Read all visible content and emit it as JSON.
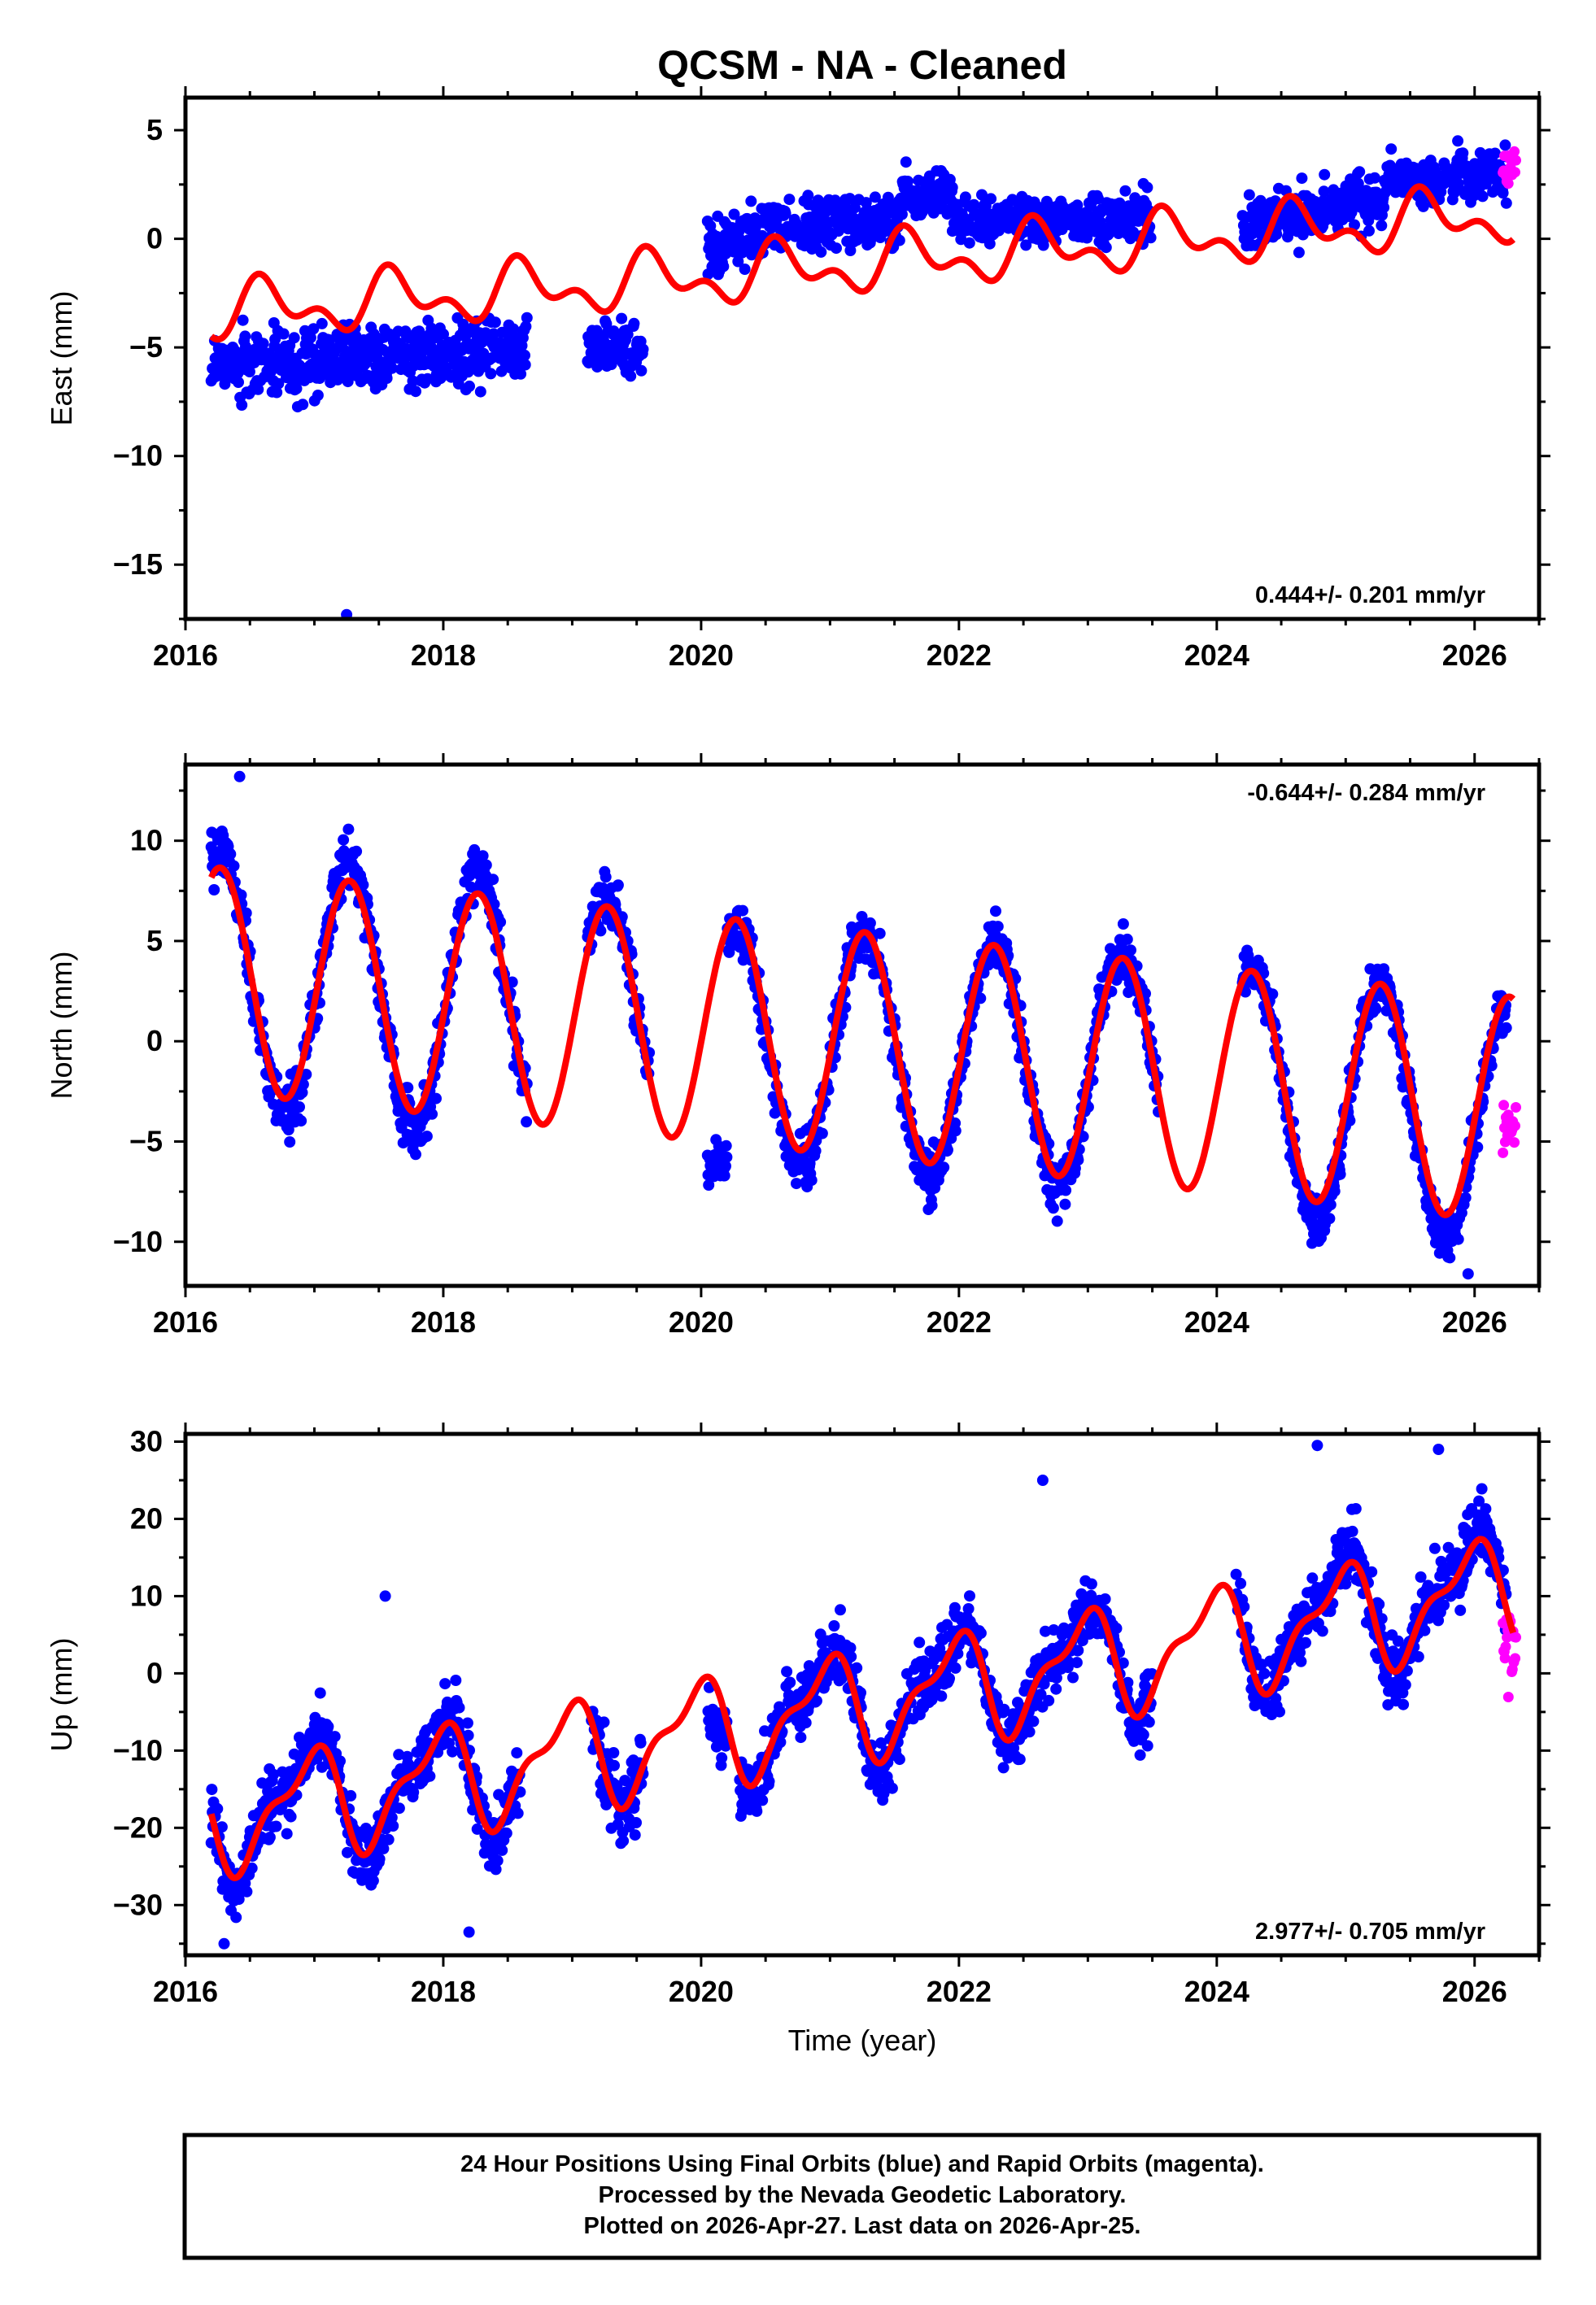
{
  "title": "QCSM  - NA - Cleaned",
  "colors": {
    "final_orbits": "#0000ff",
    "rapid_orbits": "#ff00ff",
    "model_fit": "#ff0000",
    "frame": "#000000"
  },
  "chart_data": [
    {
      "type": "scatter",
      "name": "east",
      "ylabel": "East (mm)",
      "xlabel": "",
      "xlim": [
        2016.0,
        2026.5
      ],
      "ylim": [
        -17.5,
        6.5
      ],
      "xticks": [
        2016,
        2018,
        2020,
        2022,
        2024,
        2026
      ],
      "yticks": [
        -15,
        -10,
        -5,
        0,
        5
      ],
      "xtick_labels": [
        "2016",
        "2018",
        "2020",
        "2022",
        "2024",
        "2026"
      ],
      "ytick_labels": [
        "−15",
        "−10",
        "−5",
        "0",
        "5"
      ],
      "rate_label": "0.444+/- 0.201 mm/yr",
      "rate_position": "bottom-right",
      "gaps": [
        [
          2018.65,
          2019.12
        ],
        [
          2019.55,
          2020.05
        ],
        [
          2023.5,
          2024.2
        ]
      ],
      "model": {
        "start": 2016.2,
        "end": 2026.3,
        "offset": -3.4,
        "linear": [
          [
            2016.2,
            0.0
          ],
          [
            2020.2,
            1.7
          ],
          [
            2022.0,
            2.6
          ],
          [
            2026.3,
            4.5
          ]
        ],
        "annual_amp": 1.0,
        "annual_phase": 0.62,
        "semiannual_amp": 0.7,
        "semiannual_phase": 0.05
      },
      "segments": [
        {
          "start": 2016.2,
          "end": 2018.65,
          "center_start": -5.9,
          "center_end": -5.0,
          "spread": 1.3
        },
        {
          "start": 2019.12,
          "end": 2019.55,
          "center_start": -5.0,
          "center_end": -5.0,
          "spread": 1.0
        },
        {
          "start": 2020.05,
          "end": 2020.4,
          "center_start": -0.5,
          "center_end": 0.0,
          "spread": 1.2
        },
        {
          "start": 2020.4,
          "end": 2021.55,
          "center_start": 0.3,
          "center_end": 0.8,
          "spread": 1.1
        },
        {
          "start": 2021.55,
          "end": 2021.95,
          "center_start": 2.1,
          "center_end": 2.0,
          "spread": 1.0
        },
        {
          "start": 2021.95,
          "end": 2023.5,
          "center_start": 0.8,
          "center_end": 1.0,
          "spread": 1.0
        },
        {
          "start": 2024.2,
          "end": 2025.3,
          "center_start": 0.6,
          "center_end": 1.8,
          "spread": 1.1
        },
        {
          "start": 2025.3,
          "end": 2026.25,
          "center_start": 2.6,
          "center_end": 3.0,
          "spread": 1.0
        }
      ],
      "outliers": [
        {
          "x": 2017.25,
          "y": -17.3
        }
      ],
      "rapid": {
        "start": 2026.22,
        "end": 2026.32,
        "center": 3.2,
        "spread": 0.9,
        "count": 18
      }
    },
    {
      "type": "scatter",
      "name": "north",
      "ylabel": "North (mm)",
      "xlabel": "",
      "xlim": [
        2016.0,
        2026.5
      ],
      "ylim": [
        -12.2,
        13.8
      ],
      "xticks": [
        2016,
        2018,
        2020,
        2022,
        2024,
        2026
      ],
      "yticks": [
        -10,
        -5,
        0,
        5,
        10
      ],
      "xtick_labels": [
        "2016",
        "2018",
        "2020",
        "2022",
        "2024",
        "2026"
      ],
      "ytick_labels": [
        "−10",
        "−5",
        "0",
        "5",
        "10"
      ],
      "rate_label": "-0.644+/- 0.284 mm/yr",
      "rate_position": "top-right",
      "gaps": [
        [
          2018.65,
          2019.12
        ],
        [
          2019.6,
          2020.05
        ],
        [
          2023.55,
          2024.2
        ]
      ],
      "model": {
        "start": 2016.2,
        "end": 2026.3,
        "offset": 3.1,
        "linear": [
          [
            2016.2,
            0.0
          ],
          [
            2026.3,
            -6.5
          ]
        ],
        "annual_amp": 5.6,
        "annual_phase": 0.27,
        "semiannual_amp": 0.0,
        "semiannual_phase": 0.0
      },
      "segments": [
        {
          "start": 2016.2,
          "end": 2018.65,
          "center_start": 0.0,
          "center_end": 0.0,
          "spread": 1.3,
          "follow_model": true,
          "amp_scale": 1.15
        },
        {
          "start": 2019.12,
          "end": 2019.6,
          "center_start": 0.0,
          "center_end": 0.0,
          "spread": 1.2,
          "follow_model": true,
          "amp_scale": 1.05
        },
        {
          "start": 2020.05,
          "end": 2020.2,
          "center_start": -6.0,
          "center_end": -6.0,
          "spread": 1.0
        },
        {
          "start": 2020.2,
          "end": 2023.55,
          "center_start": -0.6,
          "center_end": 0.0,
          "spread": 1.2,
          "follow_model": true,
          "amp_scale": 1.05
        },
        {
          "start": 2024.2,
          "end": 2026.25,
          "center_start": -0.3,
          "center_end": -0.8,
          "spread": 1.1,
          "follow_model": true,
          "amp_scale": 1.1
        }
      ],
      "outliers": [
        {
          "x": 2016.42,
          "y": 13.2
        },
        {
          "x": 2025.95,
          "y": -11.6
        }
      ],
      "rapid": {
        "start": 2026.22,
        "end": 2026.32,
        "center": -4.2,
        "spread": 1.5,
        "count": 18
      }
    },
    {
      "type": "scatter",
      "name": "up",
      "ylabel": "Up (mm)",
      "xlabel": "Time (year)",
      "xlim": [
        2016.0,
        2026.5
      ],
      "ylim": [
        -36.5,
        31.0
      ],
      "xticks": [
        2016,
        2018,
        2020,
        2022,
        2024,
        2026
      ],
      "yticks": [
        -30,
        -20,
        -10,
        0,
        10,
        20,
        30
      ],
      "xtick_labels": [
        "2016",
        "2018",
        "2020",
        "2022",
        "2024",
        "2026"
      ],
      "ytick_labels": [
        "−30",
        "−20",
        "−10",
        "0",
        "10",
        "20",
        "30"
      ],
      "rate_label": "2.977+/- 0.705 mm/yr",
      "rate_position": "bottom-right",
      "gaps": [
        [
          2018.6,
          2019.15
        ],
        [
          2019.55,
          2020.05
        ],
        [
          2023.5,
          2024.15
        ]
      ],
      "model": {
        "start": 2016.2,
        "end": 2026.3,
        "offset": -19.0,
        "linear": [
          [
            2016.2,
            0.0
          ],
          [
            2026.3,
            30.0
          ]
        ],
        "annual_amp": 6.2,
        "annual_phase": 0.95,
        "semiannual_amp": 2.6,
        "semiannual_phase": 0.1
      },
      "segments": [
        {
          "start": 2016.2,
          "end": 2018.6,
          "center_start": 0.0,
          "center_end": 0.0,
          "spread": 3.8,
          "follow_model": true,
          "amp_scale": 1.15
        },
        {
          "start": 2019.15,
          "end": 2019.55,
          "center_start": 0.0,
          "center_end": 0.0,
          "spread": 4.0,
          "follow_model": true,
          "amp_scale": 1.0
        },
        {
          "start": 2020.05,
          "end": 2020.2,
          "center_start": -6.0,
          "center_end": -8.0,
          "spread": 3.5
        },
        {
          "start": 2020.3,
          "end": 2023.5,
          "center_start": 0.0,
          "center_end": 0.0,
          "spread": 3.8,
          "follow_model": true,
          "amp_scale": 1.1
        },
        {
          "start": 2024.15,
          "end": 2026.25,
          "center_start": 0.5,
          "center_end": 0.5,
          "spread": 4.0,
          "follow_model": true,
          "amp_scale": 1.1
        }
      ],
      "outliers": [
        {
          "x": 2016.3,
          "y": -35.0
        },
        {
          "x": 2017.55,
          "y": 10.0
        },
        {
          "x": 2022.65,
          "y": 25.0
        },
        {
          "x": 2024.78,
          "y": 29.5
        },
        {
          "x": 2025.72,
          "y": 29.0
        },
        {
          "x": 2018.2,
          "y": -33.5
        }
      ],
      "rapid": {
        "start": 2026.22,
        "end": 2026.32,
        "center": 3.0,
        "spread": 4.5,
        "count": 20
      }
    }
  ],
  "footer": {
    "line1": "24 Hour Positions Using Final Orbits (blue) and Rapid Orbits (magenta).",
    "line2": "Processed by the Nevada Geodetic Laboratory.",
    "line3": "Plotted on 2026-Apr-27. Last data on 2026-Apr-25."
  }
}
